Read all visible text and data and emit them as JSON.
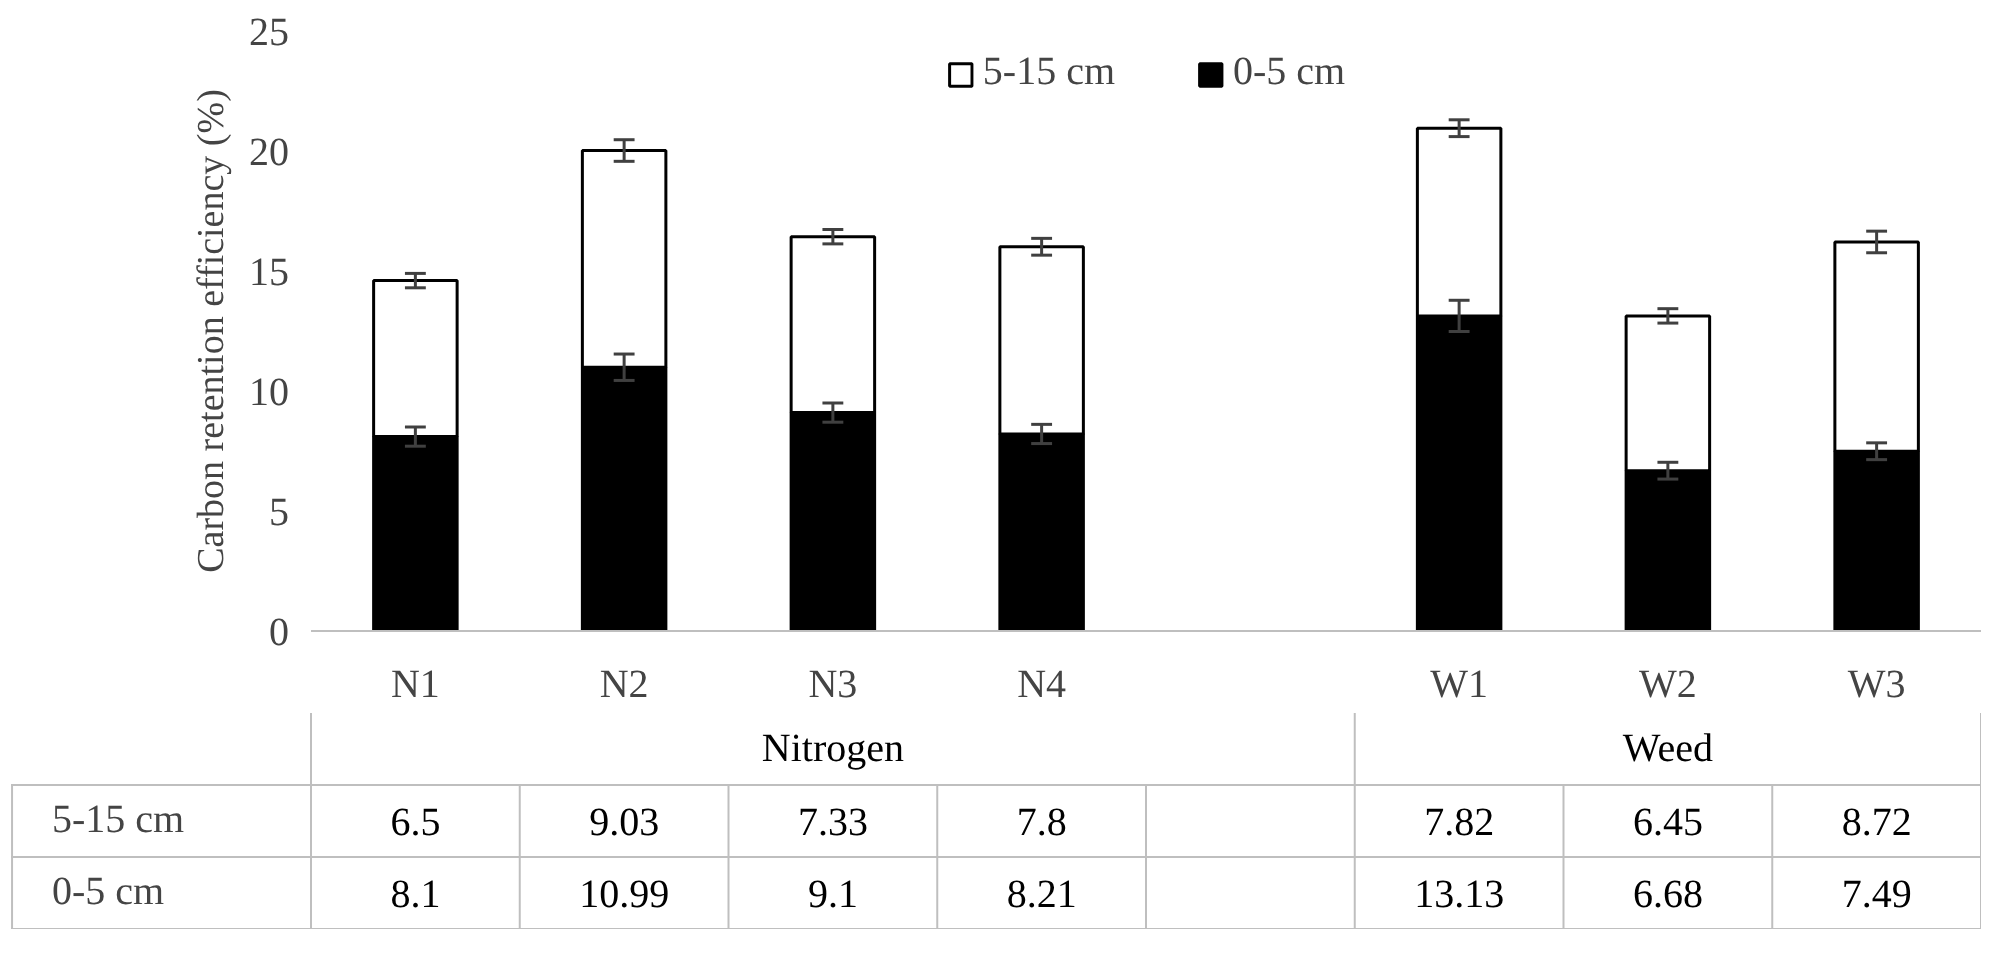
{
  "chart_data": {
    "type": "bar",
    "stacked": true,
    "ylabel": "Carbon retention efficiency (%)",
    "categories": [
      "N1",
      "N2",
      "N3",
      "N4",
      null,
      "W1",
      "W2",
      "W3"
    ],
    "series": [
      {
        "name": "0-5 cm",
        "color": "#000000",
        "values": [
          8.1,
          10.99,
          9.1,
          8.21,
          null,
          13.13,
          6.68,
          7.49
        ],
        "errors": [
          0.4,
          0.55,
          0.4,
          0.4,
          null,
          0.65,
          0.35,
          0.35
        ]
      },
      {
        "name": "5-15 cm",
        "color": "#ffffff",
        "values": [
          6.5,
          9.03,
          7.33,
          7.8,
          null,
          7.82,
          6.45,
          8.72
        ],
        "errors": [
          0.3,
          0.45,
          0.3,
          0.35,
          null,
          0.35,
          0.3,
          0.45
        ]
      }
    ],
    "annotations": [
      "Nitrogen",
      "Weed"
    ],
    "ylim": [
      0,
      25
    ],
    "yticks": [
      0,
      5,
      10,
      15,
      20,
      25
    ],
    "data_labels": true,
    "legend": "top",
    "grid": false
  }
}
